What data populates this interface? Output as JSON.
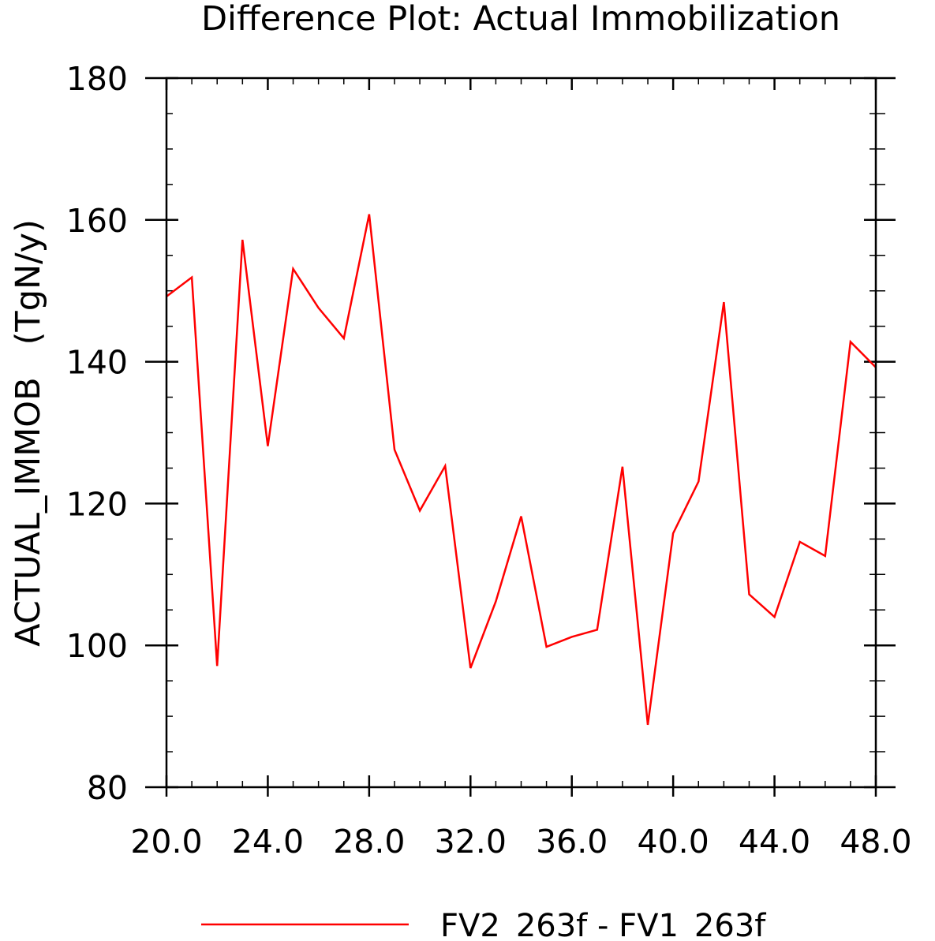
{
  "chart_data": {
    "type": "line",
    "title": "Difference Plot: Actual Immobilization",
    "xlabel": "",
    "ylabel": "ACTUAL_IMMOB   (TgN/y)",
    "xlim": [
      20,
      48
    ],
    "ylim": [
      80,
      180
    ],
    "x_ticks": [
      "20.0",
      "24.0",
      "28.0",
      "32.0",
      "36.0",
      "40.0",
      "44.0",
      "48.0"
    ],
    "y_ticks": [
      "80",
      "100",
      "120",
      "140",
      "160",
      "180"
    ],
    "grid": false,
    "legend_position": "bottom-center",
    "series": [
      {
        "name": "FV2_263f - FV1_263f",
        "color": "#ff0000",
        "x": [
          20,
          21,
          22,
          23,
          24,
          25,
          26,
          27,
          28,
          29,
          30,
          31,
          32,
          33,
          34,
          35,
          36,
          37,
          38,
          39,
          40,
          41,
          42,
          43,
          44,
          45,
          46,
          47,
          48
        ],
        "y": [
          149.2,
          151.9,
          97.1,
          157.2,
          128.1,
          153.1,
          147.6,
          143.3,
          160.8,
          127.6,
          119.0,
          125.3,
          96.8,
          106.2,
          118.2,
          99.8,
          101.2,
          102.2,
          125.2,
          88.8,
          115.8,
          123.1,
          148.4,
          107.2,
          104.0,
          114.6,
          112.6,
          142.8,
          139.2
        ]
      }
    ]
  }
}
